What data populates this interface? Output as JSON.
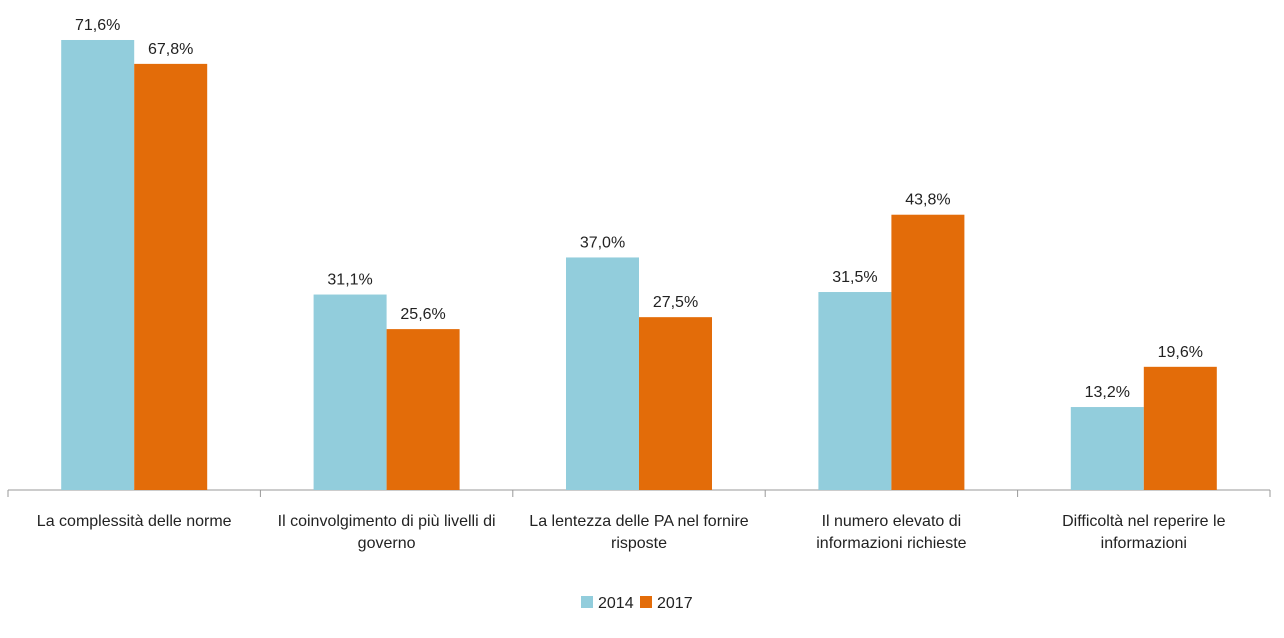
{
  "chart_data": {
    "type": "bar",
    "categories": [
      "La complessità delle norme",
      "Il coinvolgimento di più livelli di governo",
      "La lentezza delle PA nel fornire risposte",
      "Il numero elevato di informazioni richieste",
      "Difficoltà nel reperire le informazioni"
    ],
    "series": [
      {
        "name": "2014",
        "color": "#92cddc",
        "values": [
          71.6,
          31.1,
          37.0,
          31.5,
          13.2
        ],
        "value_labels": [
          "71,6%",
          "31,1%",
          "37,0%",
          "31,5%",
          "13,2%"
        ]
      },
      {
        "name": "2017",
        "color": "#e36c09",
        "values": [
          67.8,
          25.6,
          27.5,
          43.8,
          19.6
        ],
        "value_labels": [
          "67,8%",
          "25,6%",
          "27,5%",
          "43,8%",
          "19,6%"
        ]
      }
    ],
    "legend": "bottom"
  }
}
